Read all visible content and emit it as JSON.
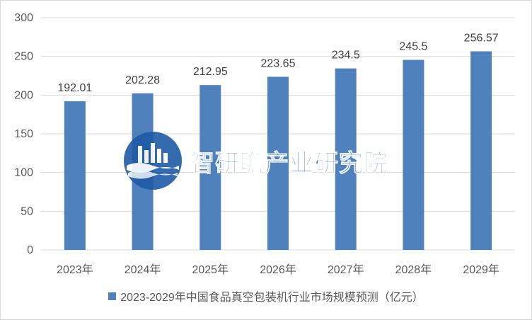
{
  "chart_data": {
    "type": "bar",
    "categories": [
      "2023年",
      "2024年",
      "2025年",
      "2026年",
      "2027年",
      "2028年",
      "2029年"
    ],
    "series": [
      {
        "name": "2023-2029年中国食品真空包装机行业市场规模预测（亿元）",
        "values": [
          192.01,
          202.28,
          212.95,
          223.65,
          234.5,
          245.5,
          256.57
        ],
        "labels": [
          "192.01",
          "202.28",
          "212.95",
          "223.65",
          "234.5",
          "245.5",
          "256.57"
        ]
      }
    ],
    "ylim": [
      0,
      300
    ],
    "yticks": [
      "0",
      "50",
      "100",
      "150",
      "200",
      "250",
      "300"
    ],
    "grid": true,
    "legend_position": "bottom",
    "bar_color": "#4f81bd"
  },
  "watermark": {
    "text": "智研瞻产业研究院",
    "color": "#1f5aa6"
  }
}
